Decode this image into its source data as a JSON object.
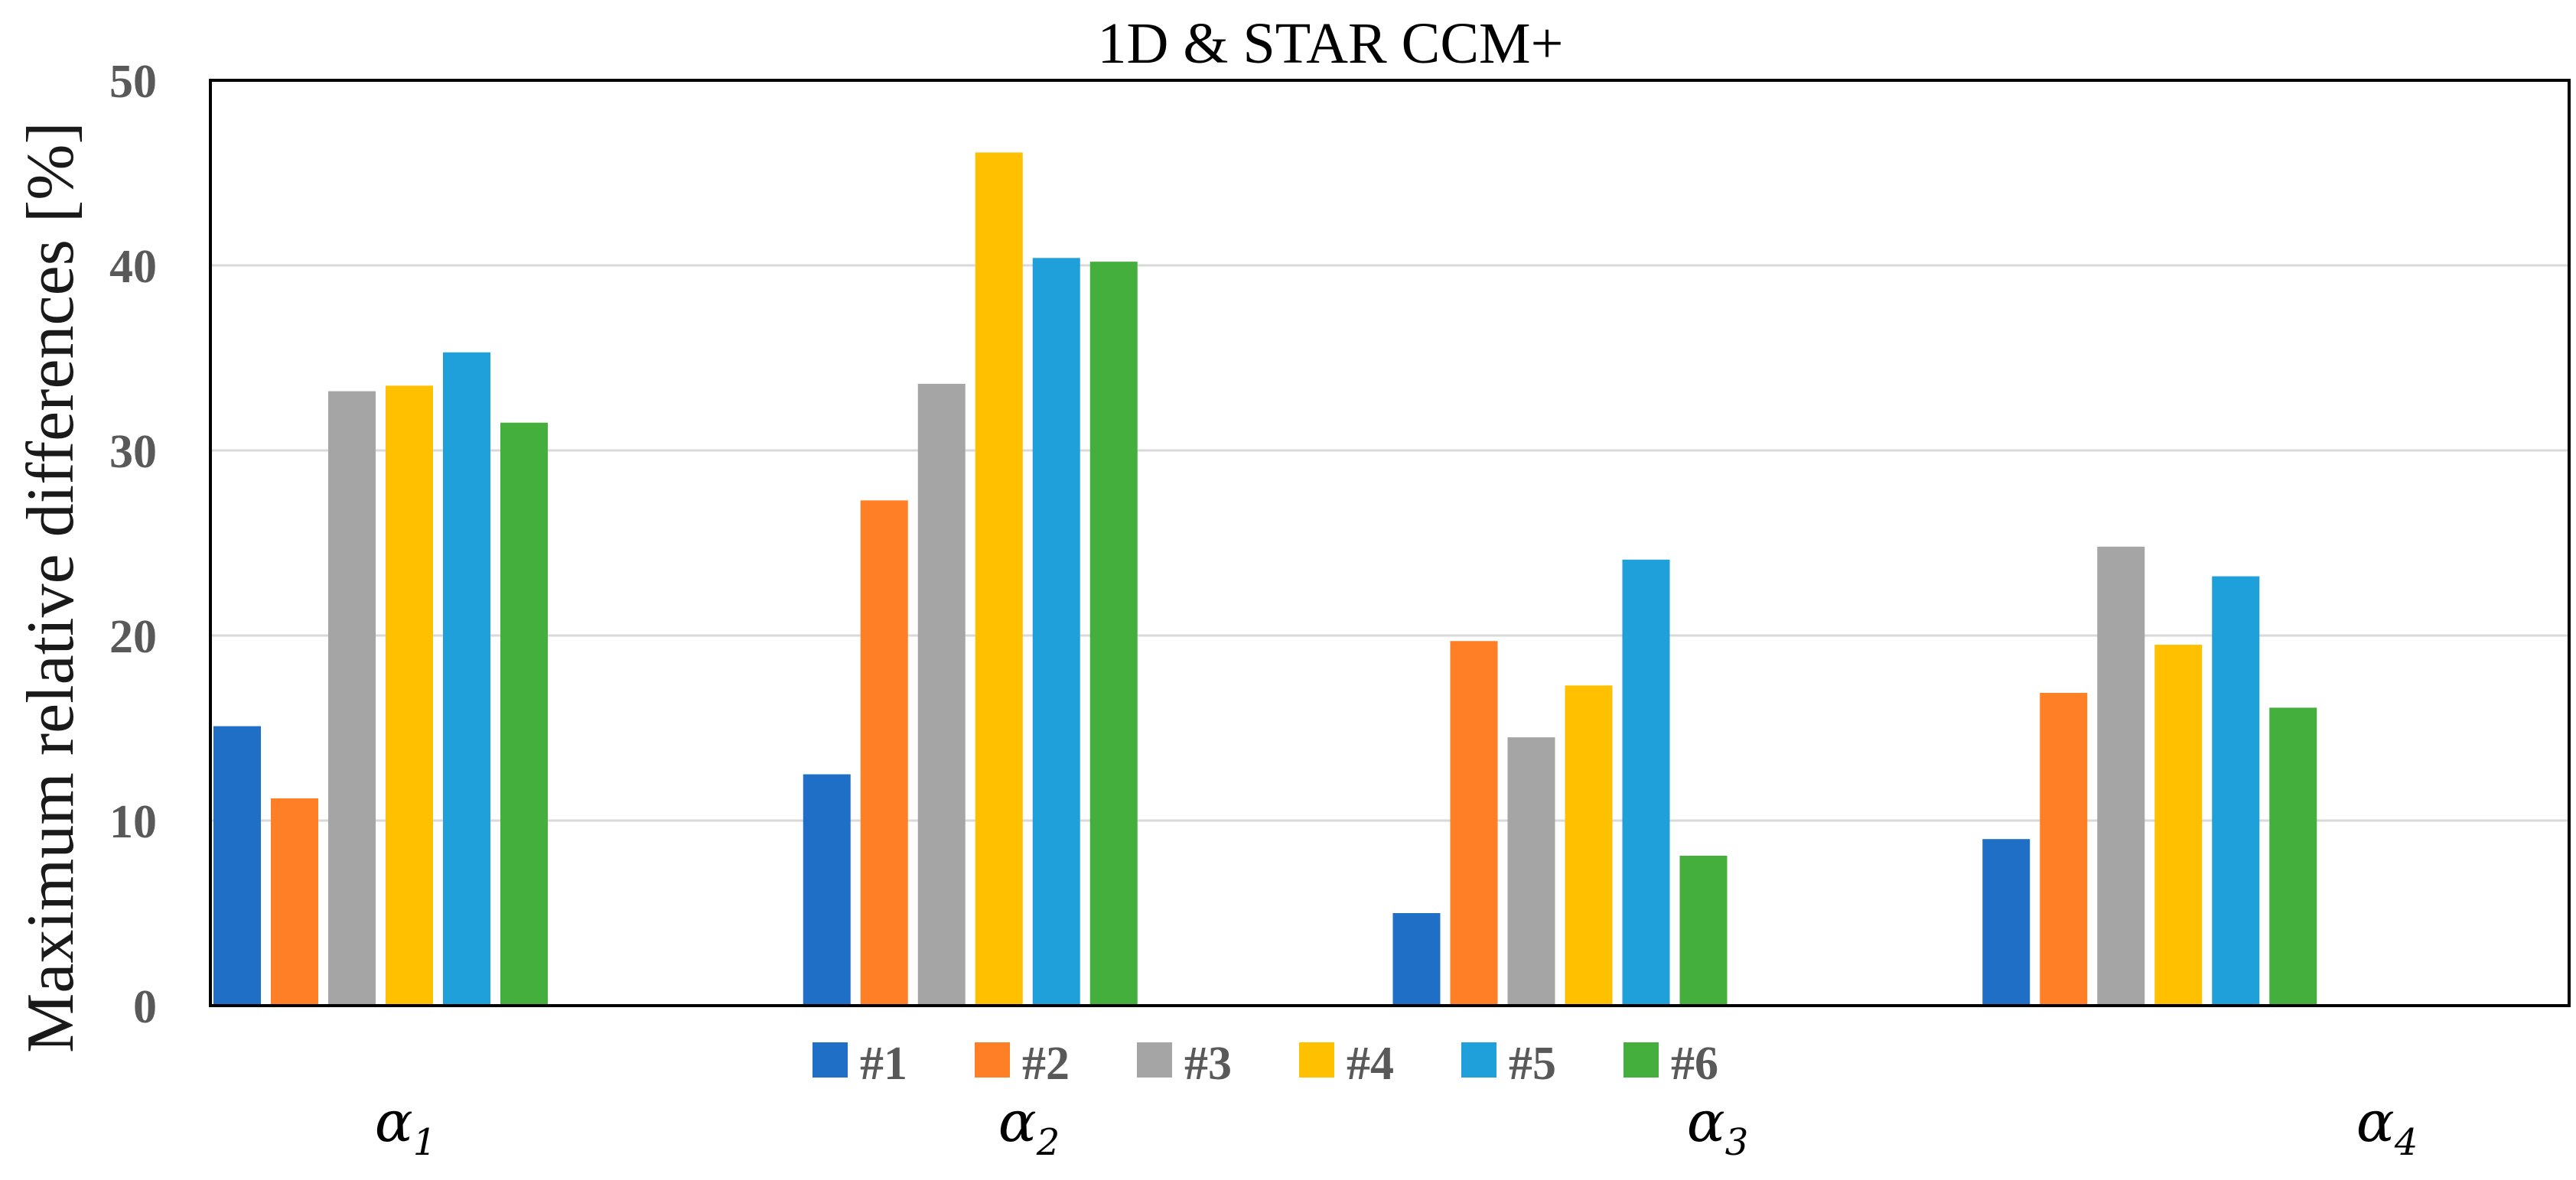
{
  "chart_data": {
    "type": "bar",
    "title": "1D & STAR CCM+",
    "xlabel": "",
    "ylabel": "Maximum relative differences [%]",
    "ylim": [
      0,
      50
    ],
    "yticks": [
      "0",
      "10",
      "20",
      "30",
      "40",
      "50"
    ],
    "grid": true,
    "legend_position": "bottom",
    "categories": [
      {
        "symbol": "α",
        "subscript": "1"
      },
      {
        "symbol": "α",
        "subscript": "2"
      },
      {
        "symbol": "α",
        "subscript": "3"
      },
      {
        "symbol": "α",
        "subscript": "4"
      }
    ],
    "series": [
      {
        "name": "#1",
        "color": "#1F6FC6",
        "values": [
          15.1,
          12.5,
          5.0,
          9.0
        ]
      },
      {
        "name": "#2",
        "color": "#FF7F27",
        "values": [
          11.2,
          27.3,
          19.7,
          16.9
        ]
      },
      {
        "name": "#3",
        "color": "#A5A5A5",
        "values": [
          33.2,
          33.6,
          14.5,
          24.8
        ]
      },
      {
        "name": "#4",
        "color": "#FFC000",
        "values": [
          33.5,
          46.1,
          17.3,
          19.5
        ]
      },
      {
        "name": "#5",
        "color": "#1FA0DA",
        "values": [
          35.3,
          40.4,
          24.1,
          23.2
        ]
      },
      {
        "name": "#6",
        "color": "#44AF3C",
        "values": [
          31.5,
          40.2,
          8.1,
          16.1
        ]
      }
    ]
  }
}
